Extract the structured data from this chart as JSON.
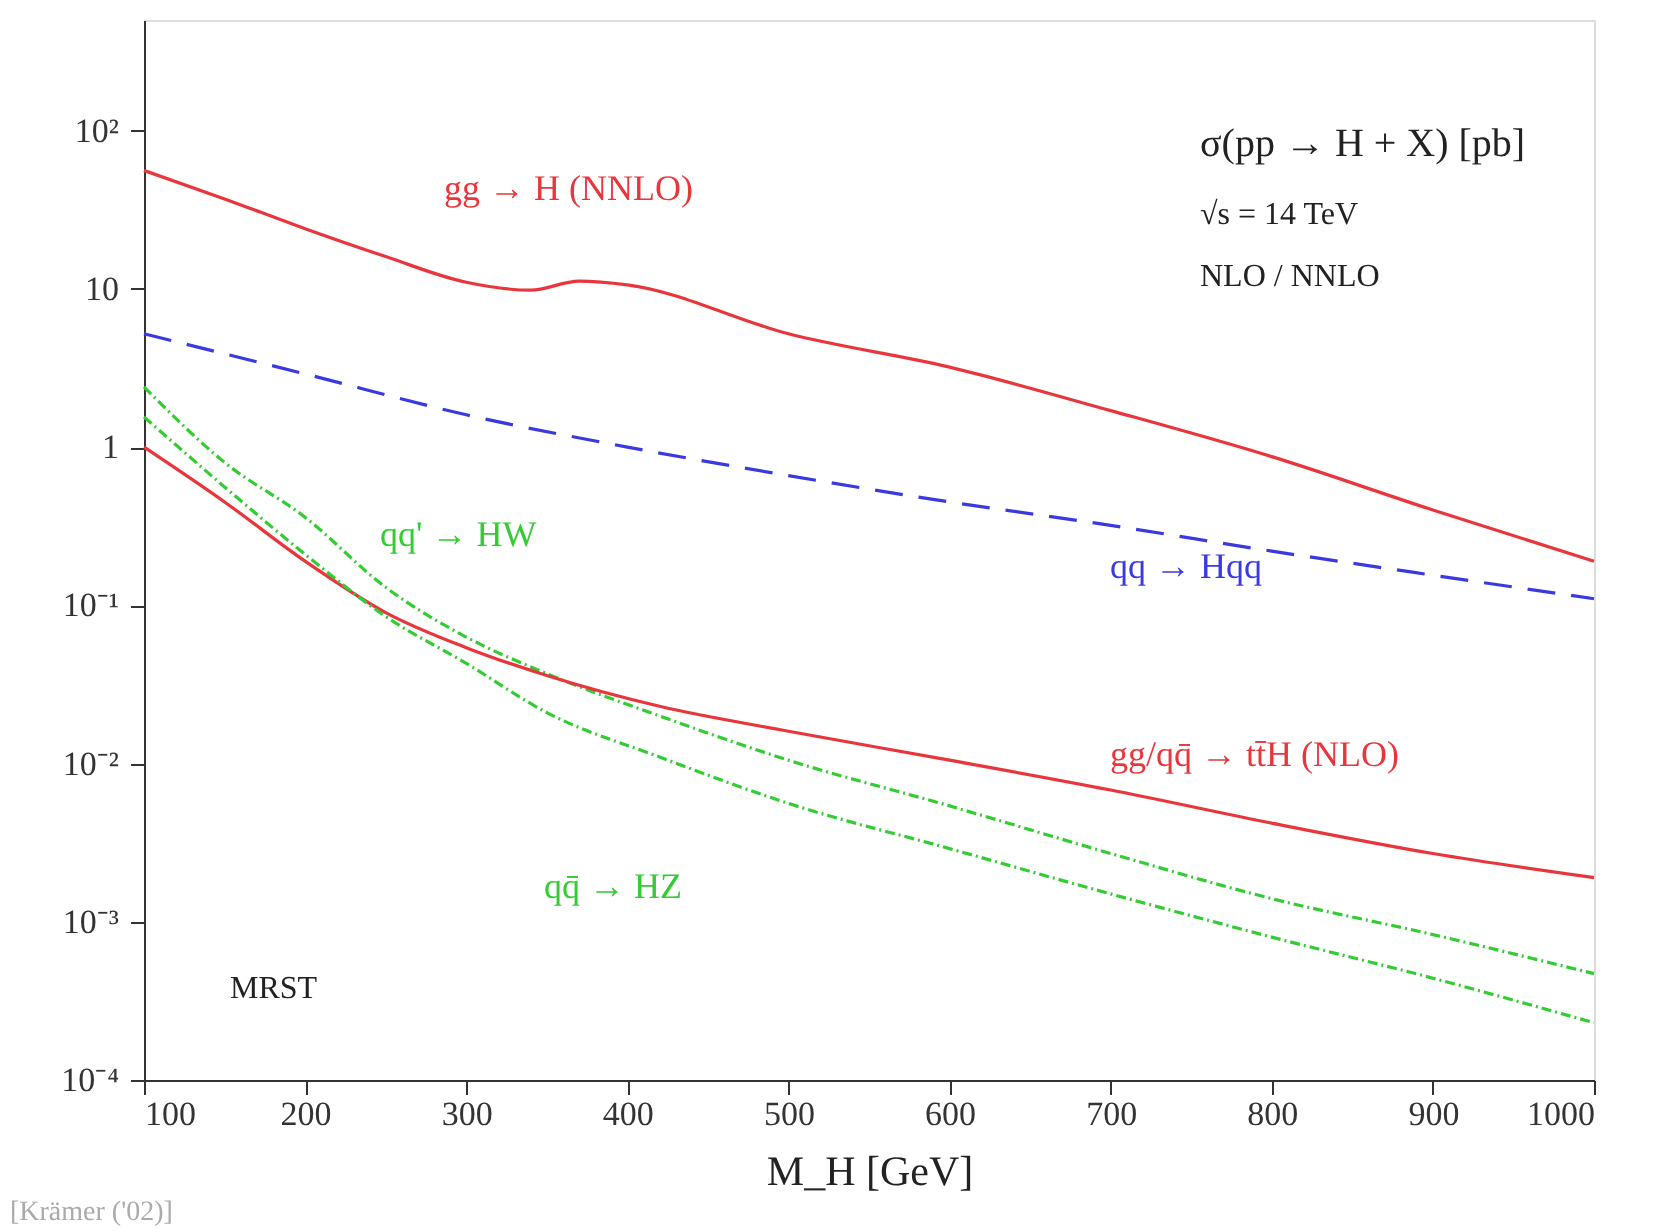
{
  "chart_data": {
    "type": "line",
    "xlabel": "M_H [GeV]",
    "xlim": [
      100,
      1000
    ],
    "xticks": [
      100,
      200,
      300,
      400,
      500,
      600,
      700,
      800,
      900,
      {
        "value": 1000,
        "label": "1000"
      }
    ],
    "ylim": [
      0.0001,
      500
    ],
    "log": true,
    "grid": false,
    "legend": false,
    "yticks": [
      {
        "value": 100,
        "label": "10²"
      },
      {
        "value": 10,
        "label": "10"
      },
      {
        "value": 1,
        "label": "1"
      },
      {
        "value": 0.1,
        "label": "10⁻¹"
      },
      {
        "value": 0.01,
        "label": "10⁻²"
      },
      {
        "value": 0.001,
        "label": "10⁻³"
      },
      {
        "value": 0.0001,
        "label": "10⁻⁴"
      }
    ],
    "series": [
      {
        "name": "gg → H (NNLO)",
        "color": "#e8363c",
        "line_style": "solid",
        "x": [
          100,
          150,
          200,
          250,
          300,
          340,
          370,
          400,
          500,
          600,
          700,
          800,
          900,
          1000
        ],
        "values": [
          56,
          37,
          24,
          16,
          11,
          9.8,
          11.2,
          10.6,
          5.2,
          3.2,
          1.7,
          0.87,
          0.4,
          0.19
        ]
      },
      {
        "name": "qq → Hqq",
        "color": "#3a3ae0",
        "line_style": "dashed",
        "x": [
          100,
          200,
          300,
          400,
          500,
          600,
          700,
          800,
          900,
          1000
        ],
        "values": [
          5.2,
          2.9,
          1.6,
          1.0,
          0.66,
          0.45,
          0.32,
          0.22,
          0.155,
          0.11
        ]
      },
      {
        "name": "qq' → HW",
        "color": "#33cc33",
        "line_style": "dotted",
        "x": [
          100,
          150,
          200,
          250,
          300,
          350,
          420,
          500,
          600,
          700,
          800,
          900,
          1000
        ],
        "values": [
          2.4,
          0.8,
          0.36,
          0.13,
          0.063,
          0.037,
          0.02,
          0.0105,
          0.0054,
          0.0027,
          0.0014,
          0.00083,
          0.00047
        ]
      },
      {
        "name": "gg/qq̄ → tt̄H (NLO)",
        "color": "#e8363c",
        "line_style": "solid",
        "x": [
          100,
          150,
          200,
          250,
          300,
          350,
          420,
          500,
          600,
          700,
          800,
          900,
          1000
        ],
        "values": [
          1.0,
          0.45,
          0.19,
          0.09,
          0.054,
          0.036,
          0.023,
          0.016,
          0.0105,
          0.0068,
          0.0042,
          0.0027,
          0.0019
        ]
      },
      {
        "name": "qq̄ → HZ",
        "color": "#33cc33",
        "line_style": "dotted",
        "x": [
          100,
          150,
          200,
          250,
          300,
          350,
          420,
          500,
          600,
          700,
          800,
          900,
          1000
        ],
        "values": [
          1.55,
          0.56,
          0.21,
          0.085,
          0.043,
          0.021,
          0.011,
          0.0056,
          0.0029,
          0.0015,
          0.0008,
          0.00044,
          0.00023
        ]
      }
    ],
    "annotations": [
      "σ(pp → H + X) [pb]",
      "√s = 14 TeV",
      "NLO / NNLO",
      "MRST",
      "[Krämer ('02)]"
    ]
  }
}
